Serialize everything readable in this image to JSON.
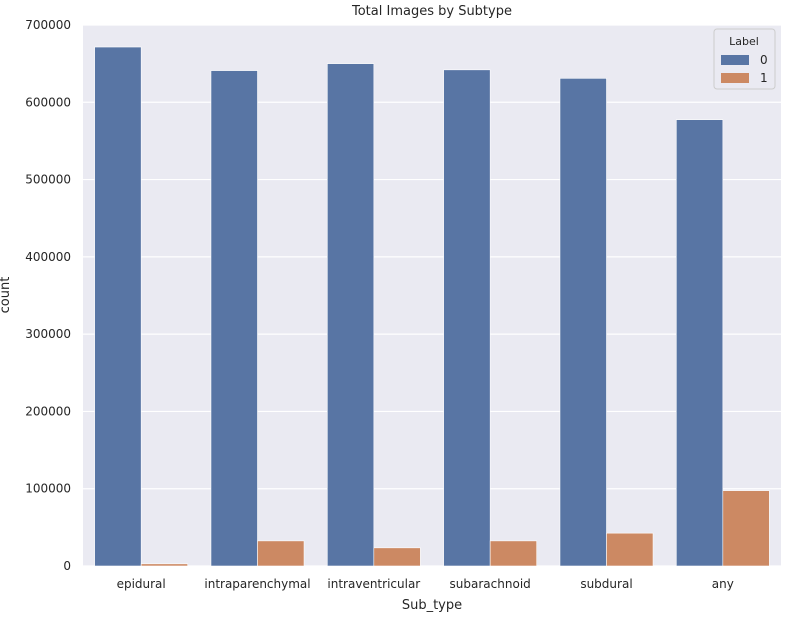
{
  "chart_data": {
    "type": "bar",
    "title": "Total Images by Subtype",
    "xlabel": "Sub_type",
    "ylabel": "count",
    "categories": [
      "epidural",
      "intraparenchymal",
      "intraventricular",
      "subarachnoid",
      "subdural",
      "any"
    ],
    "series": [
      {
        "name": "0",
        "color": "#5875a4",
        "values": [
          671500,
          641000,
          650000,
          642000,
          631000,
          577500
        ]
      },
      {
        "name": "1",
        "color": "#cc8963",
        "values": [
          2800,
          32500,
          23500,
          32500,
          42500,
          97500
        ]
      }
    ],
    "ylim": [
      0,
      700000
    ],
    "yticks": [
      0,
      100000,
      200000,
      300000,
      400000,
      500000,
      600000,
      700000
    ],
    "legend": {
      "title": "Label",
      "position": "top-right"
    },
    "grid": true,
    "background": "#eaeaf2"
  }
}
